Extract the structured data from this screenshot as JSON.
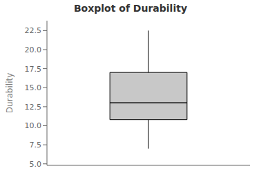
{
  "chart_data": {
    "type": "box",
    "title": "Boxplot of Durability",
    "ylabel": "Durability",
    "color": "#c8c8c8",
    "whisker_lo": 7.0,
    "q1": 10.8,
    "median": 13.0,
    "q3": 17.0,
    "whisker_hi": 22.5,
    "ylim": [
      4.8,
      23.8
    ],
    "yticks": [
      {
        "value": 5,
        "label": "5.0"
      },
      7.5,
      {
        "value": 10,
        "label": "10.0"
      },
      12.5,
      {
        "value": 15,
        "label": "15.0"
      },
      17.5,
      {
        "value": 20,
        "label": "20.0"
      },
      22.5
    ],
    "grid": false,
    "tick_labels": "y"
  }
}
